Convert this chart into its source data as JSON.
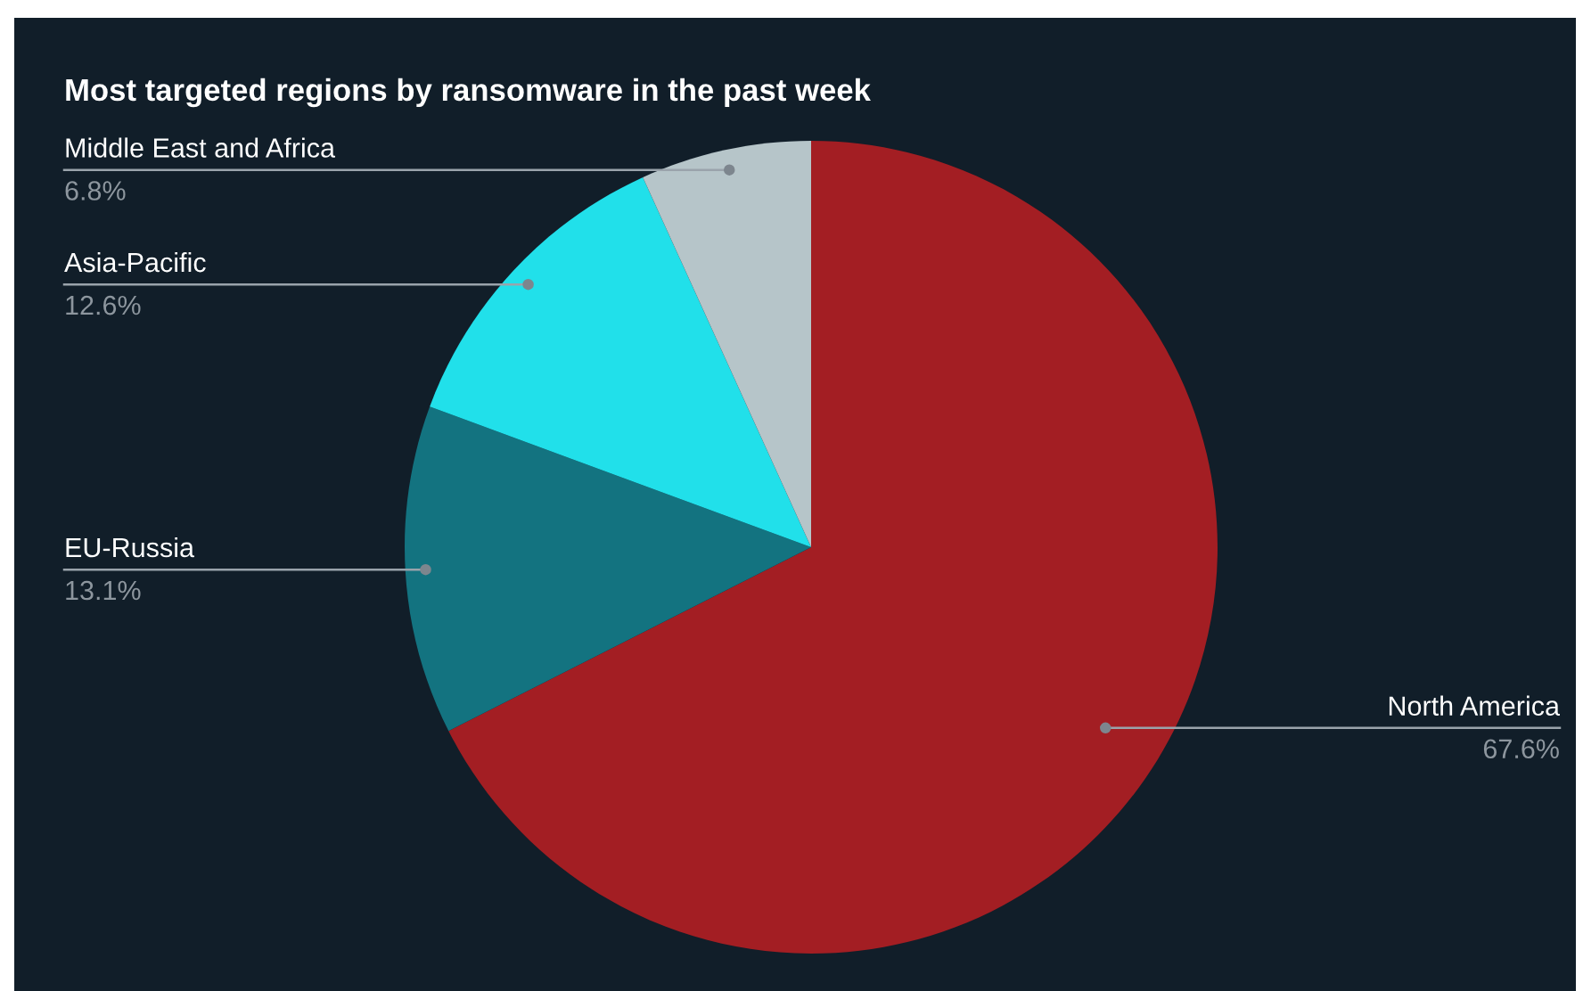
{
  "chart_data": {
    "type": "pie",
    "title": "Most targeted regions by ransomware in the past week",
    "categories": [
      "North America",
      "EU-Russia",
      "Asia-Pacific",
      "Middle East and Africa"
    ],
    "values": [
      67.6,
      13.1,
      12.6,
      6.8
    ],
    "value_labels": [
      "67.6%",
      "13.1%",
      "12.6%",
      "6.8%"
    ],
    "colors": [
      "#a31e23",
      "#137380",
      "#21e0ea",
      "#b6c5c9"
    ],
    "legend": false
  }
}
